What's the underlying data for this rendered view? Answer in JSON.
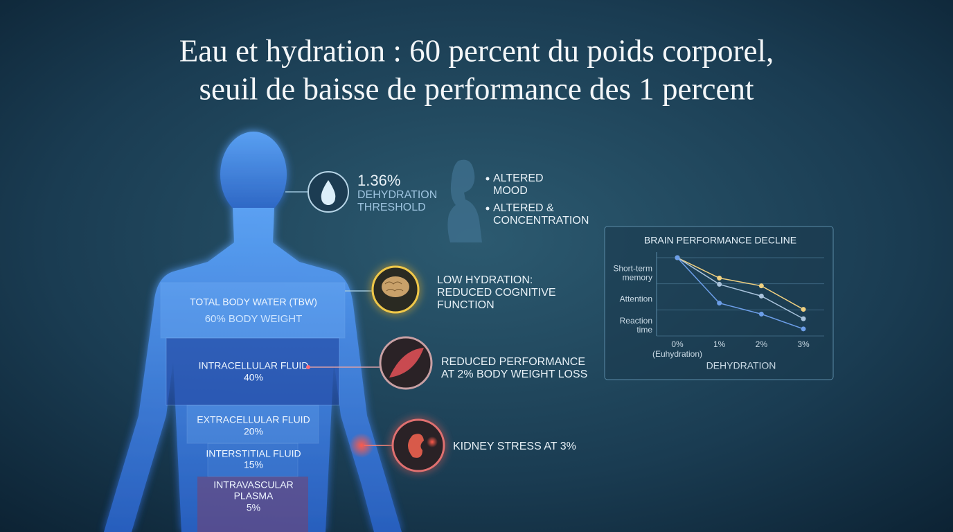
{
  "header": {
    "title": [
      "Eau et hydration : 60 percent du poids corporel,",
      "seuil de baisse de performance des 1 percent"
    ]
  },
  "body": {
    "tbw": {
      "label": "TOTAL BODY WATER (TBW)",
      "value": "60% BODY WEIGHT"
    },
    "intracellular": {
      "label": "INTRACELLULAR FLUID",
      "value": "40%"
    },
    "extracellular": {
      "label": "EXTRACELLULAR FLUID",
      "value": "20%"
    },
    "interstitial": {
      "label": "INTERSTITIAL FLUID",
      "value": "15%"
    },
    "plasma": {
      "label": [
        "INTRAVASCULAR",
        "PLASMA"
      ],
      "value": "5%"
    }
  },
  "callouts": {
    "threshold": {
      "value": "1.36%",
      "label": [
        "DEHYDRATION",
        "THRESHOLD"
      ]
    },
    "effects": [
      [
        "ALTERED",
        "MOOD"
      ],
      [
        "ALTERED &",
        "CONCENTRATION"
      ]
    ],
    "cognitive": [
      "LOW HYDRATION:",
      "REDUCED COGNITIVE",
      "FUNCTION"
    ],
    "performance": [
      "REDUCED PERFORMANCE",
      "AT 2% BODY WEIGHT LOSS"
    ],
    "kidney": "KIDNEY STRESS AT 3%"
  },
  "chart": {
    "type": "line",
    "title": "BRAIN PERFORMANCE DECLINE",
    "x_label": "DEHYDRATION",
    "categories": [
      "0%",
      "1%",
      "2%",
      "3%"
    ],
    "category_note": "(Euhydration)",
    "row_labels": [
      [
        "Short-term",
        "memory"
      ],
      [
        "Attention"
      ],
      [
        "Reaction",
        "time"
      ]
    ],
    "ylim": [
      0,
      100
    ],
    "series": [
      {
        "color": "#f0d080",
        "values": [
          100,
          74,
          64,
          34
        ]
      },
      {
        "color": "#a9c3dc",
        "values": [
          100,
          66,
          51,
          22
        ]
      },
      {
        "color": "#6c9ee8",
        "values": [
          100,
          42,
          28,
          9
        ]
      }
    ]
  }
}
